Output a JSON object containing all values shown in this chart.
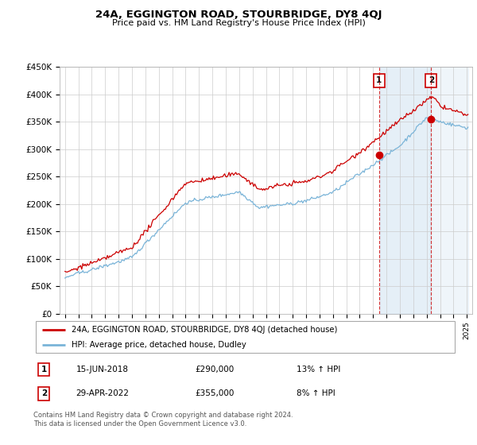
{
  "title": "24A, EGGINGTON ROAD, STOURBRIDGE, DY8 4QJ",
  "subtitle": "Price paid vs. HM Land Registry's House Price Index (HPI)",
  "ylabel_ticks": [
    "£0",
    "£50K",
    "£100K",
    "£150K",
    "£200K",
    "£250K",
    "£300K",
    "£350K",
    "£400K",
    "£450K"
  ],
  "ylim": [
    0,
    450000
  ],
  "ytick_vals": [
    0,
    50000,
    100000,
    150000,
    200000,
    250000,
    300000,
    350000,
    400000,
    450000
  ],
  "hpi_color": "#7ab4d8",
  "price_color": "#cc0000",
  "legend_line1": "24A, EGGINGTON ROAD, STOURBRIDGE, DY8 4QJ (detached house)",
  "legend_line2": "HPI: Average price, detached house, Dudley",
  "annotation1_num": "1",
  "annotation1_date": "15-JUN-2018",
  "annotation1_price": "£290,000",
  "annotation1_hpi": "13% ↑ HPI",
  "annotation2_num": "2",
  "annotation2_date": "29-APR-2022",
  "annotation2_price": "£355,000",
  "annotation2_hpi": "8% ↑ HPI",
  "footnote1": "Contains HM Land Registry data © Crown copyright and database right 2024.",
  "footnote2": "This data is licensed under the Open Government Licence v3.0.",
  "sale1_year": 2018.45,
  "sale1_price": 290000,
  "sale2_year": 2022.33,
  "sale2_price": 355000,
  "shade_color": "#cce0f0",
  "shade_alpha": 0.5
}
